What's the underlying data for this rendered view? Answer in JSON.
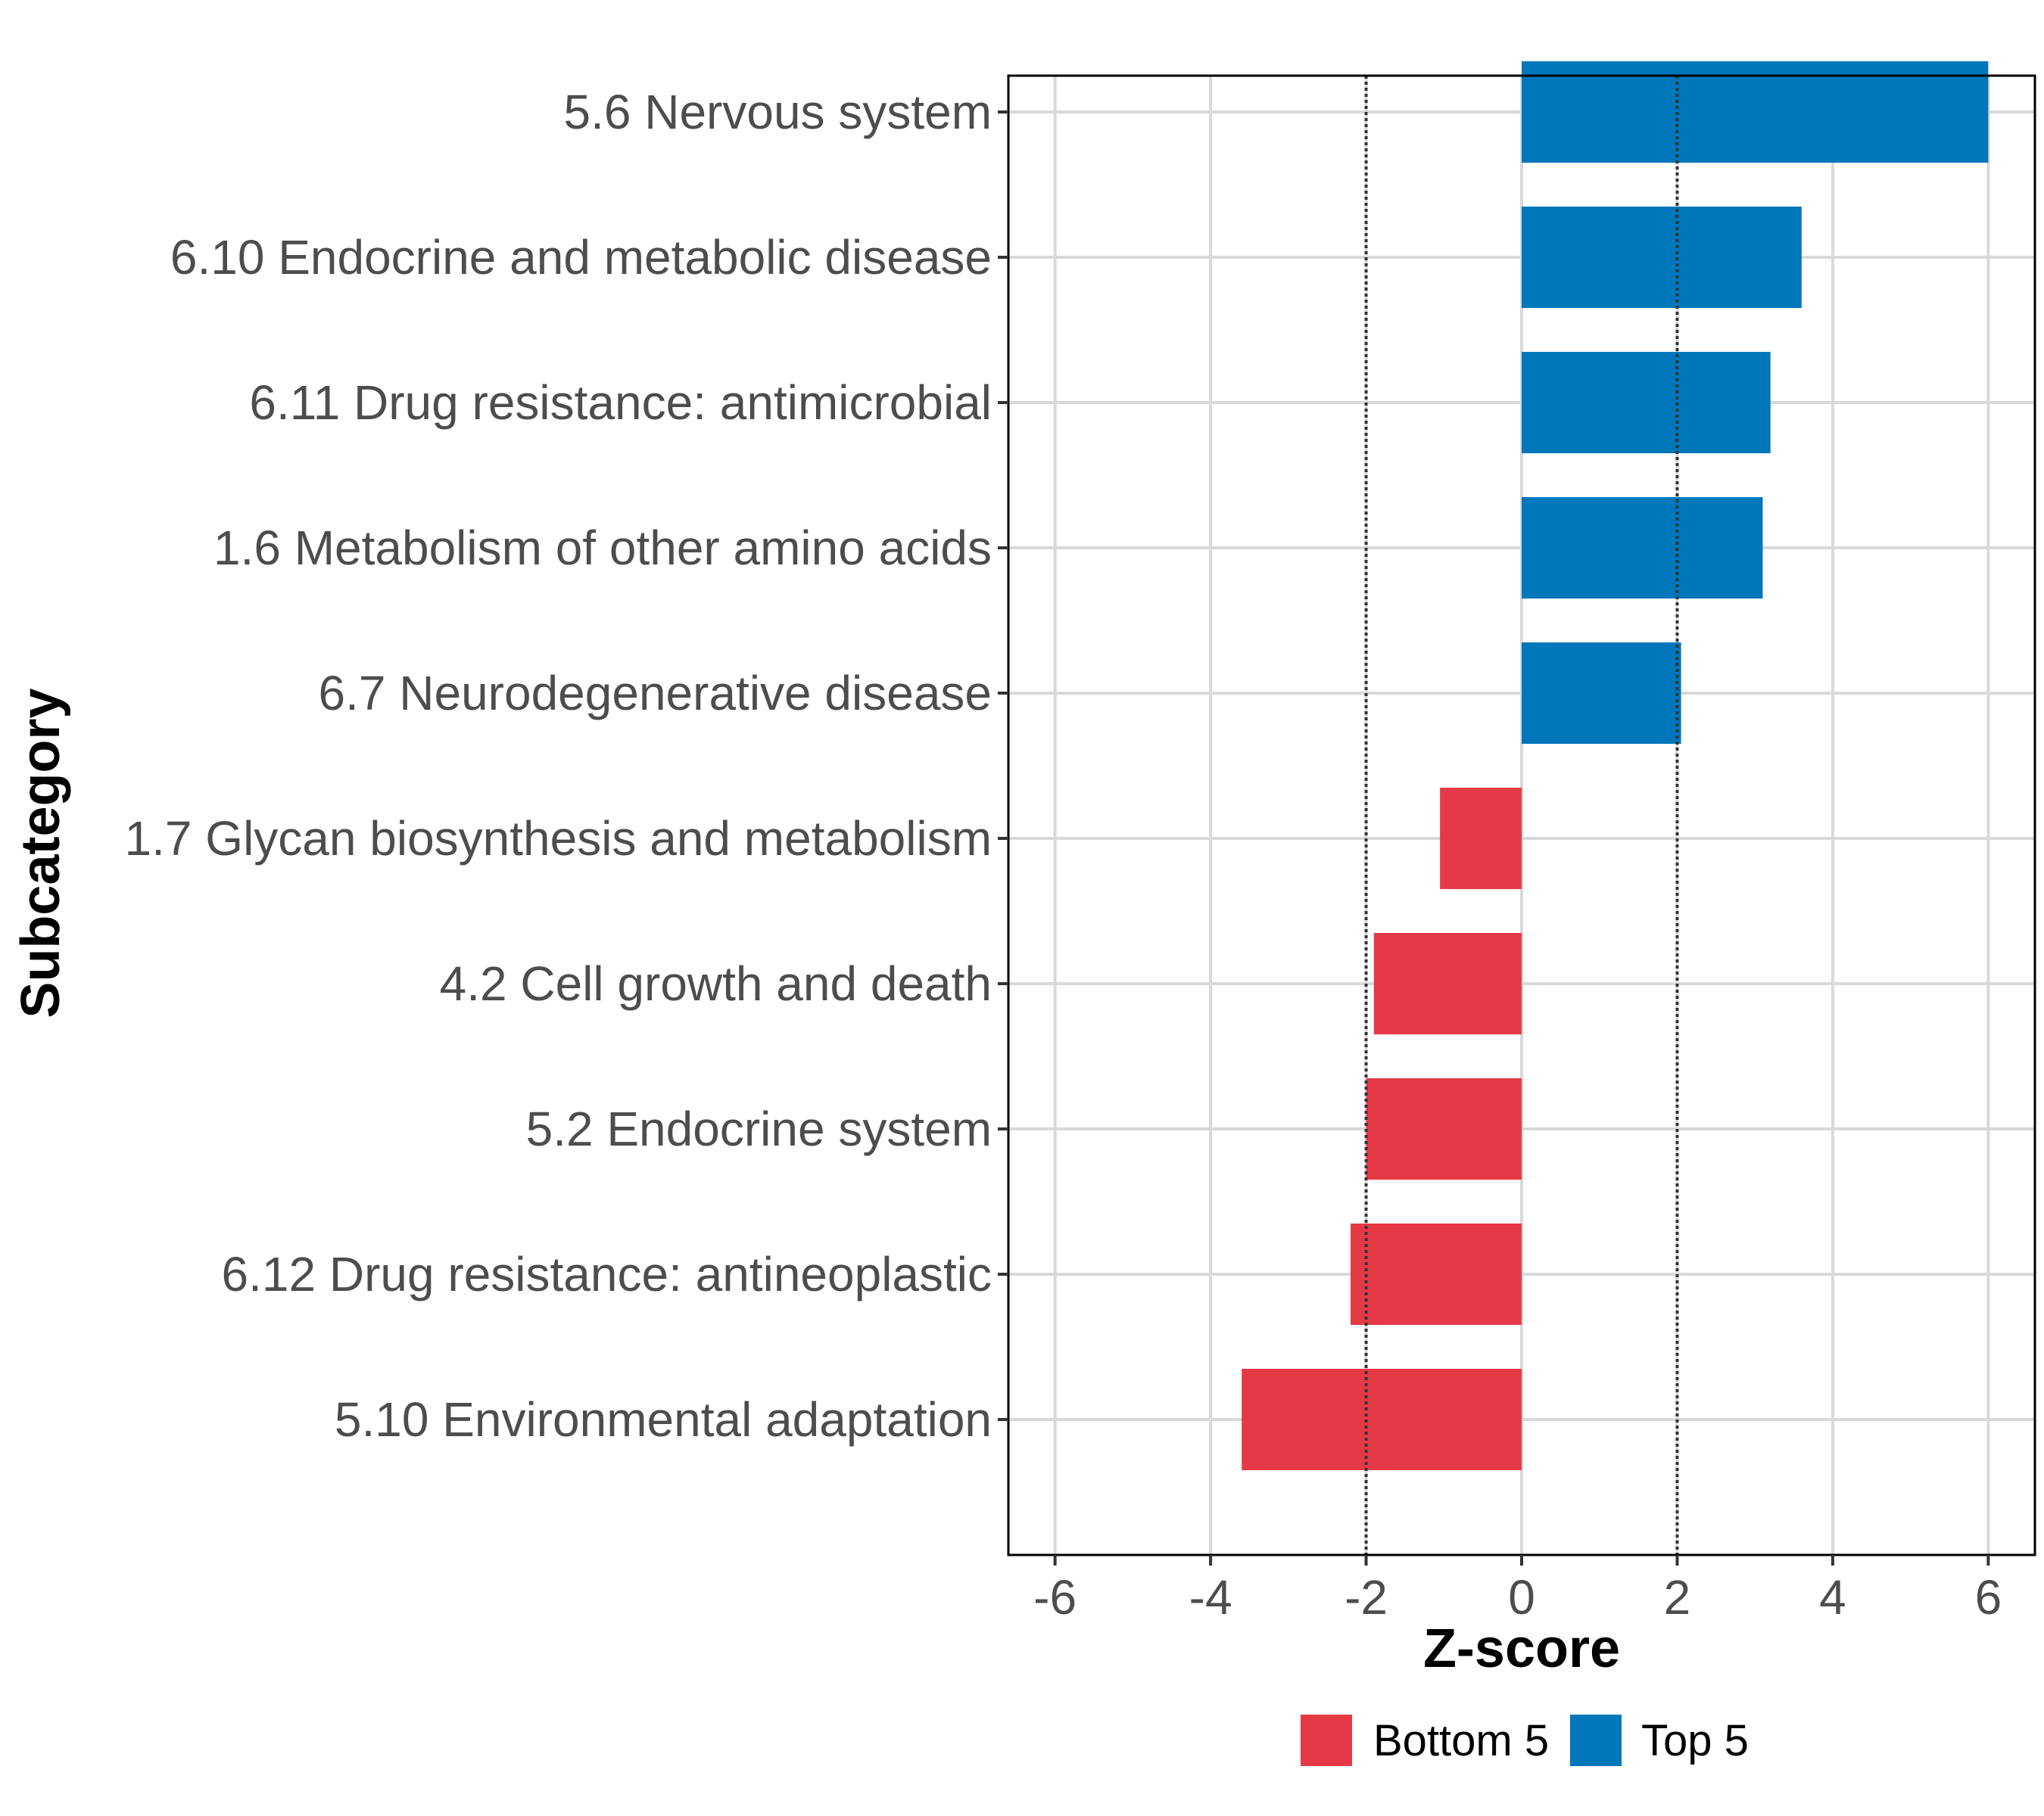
{
  "chart_data": {
    "type": "bar",
    "orientation": "horizontal",
    "xlabel": "Z-score",
    "ylabel": "Subcategory",
    "xlim": [
      -6.6,
      6.6
    ],
    "xticks": [
      -6,
      -4,
      -2,
      0,
      2,
      4,
      6
    ],
    "reference_lines": [
      -2,
      2
    ],
    "grid": true,
    "legend_position": "bottom",
    "categories": [
      "5.6 Nervous system",
      "6.10 Endocrine and metabolic disease",
      "6.11 Drug resistance: antimicrobial",
      "1.6 Metabolism of other amino acids",
      "6.7 Neurodegenerative disease",
      "1.7 Glycan biosynthesis and metabolism",
      "4.2 Cell growth and death",
      "5.2 Endocrine system",
      "6.12 Drug resistance: antineoplastic",
      "5.10 Environmental adaptation"
    ],
    "values": [
      6.0,
      3.6,
      3.2,
      3.1,
      2.05,
      -1.05,
      -1.9,
      -2.0,
      -2.2,
      -3.6
    ],
    "groups": [
      "Top 5",
      "Top 5",
      "Top 5",
      "Top 5",
      "Top 5",
      "Bottom 5",
      "Bottom 5",
      "Bottom 5",
      "Bottom 5",
      "Bottom 5"
    ],
    "legend": [
      {
        "name": "Bottom 5",
        "color": "#E63946"
      },
      {
        "name": "Top 5",
        "color": "#0077BB"
      }
    ]
  }
}
